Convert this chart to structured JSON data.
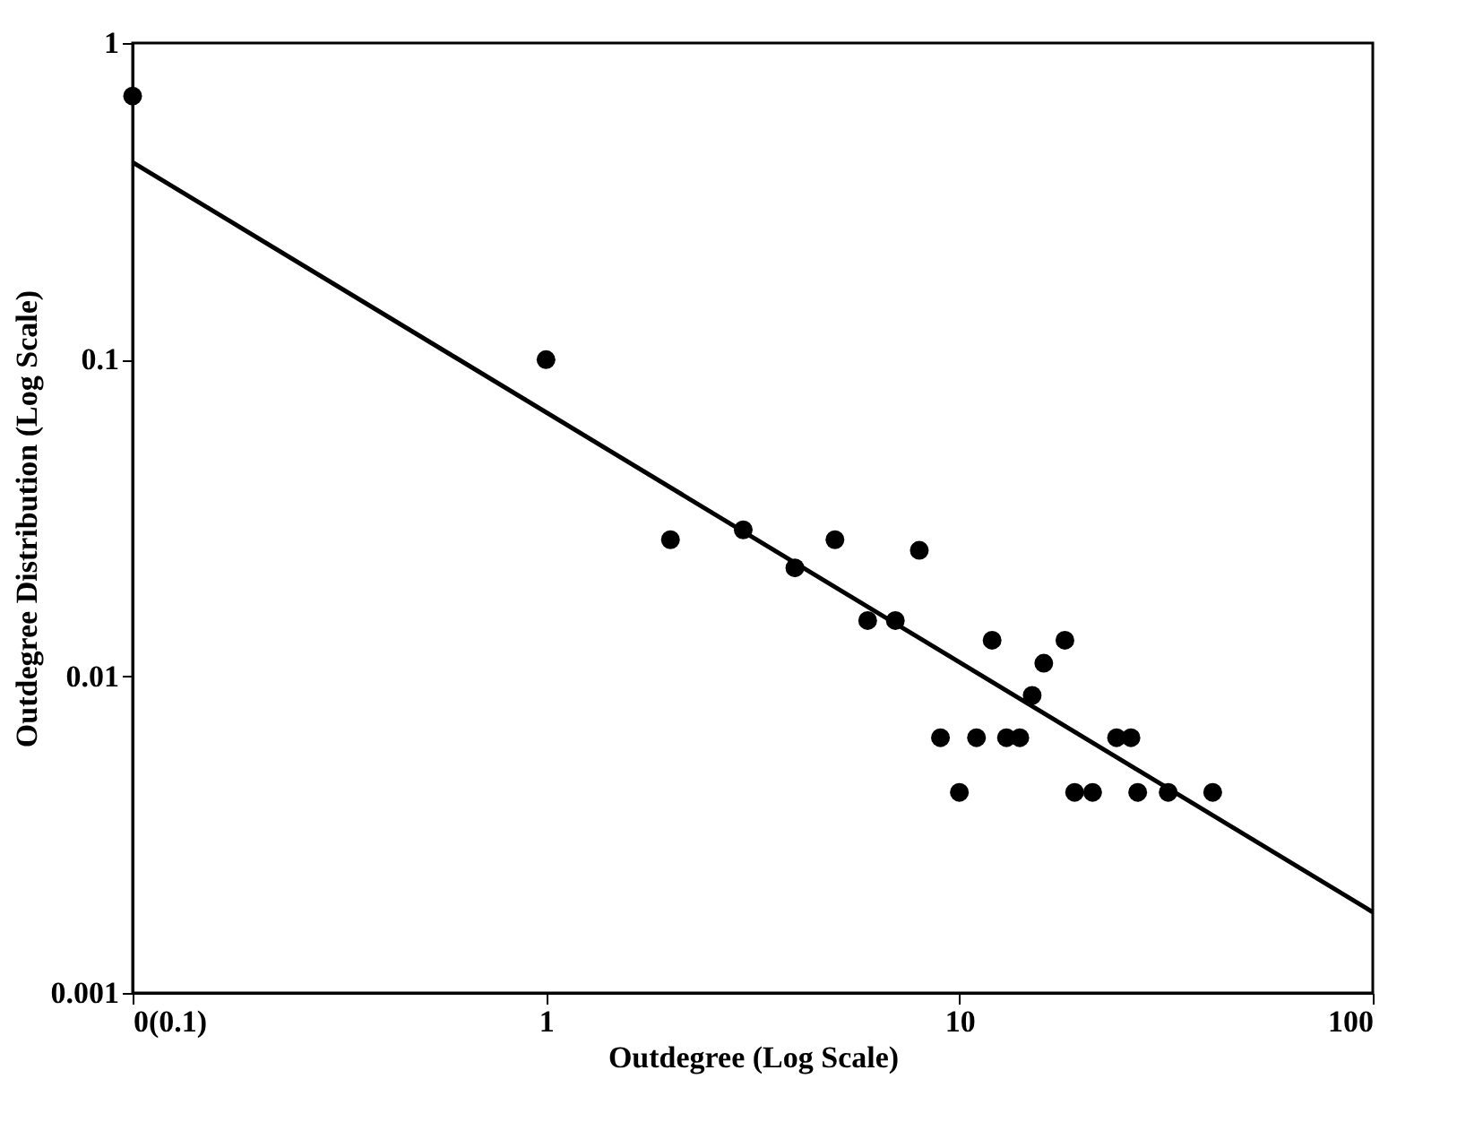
{
  "chart_data": {
    "type": "scatter",
    "xlabel": "Outdegree (Log Scale)",
    "ylabel": "Outdegree Distribution (Log Scale)",
    "log": "xy",
    "grid": false,
    "marker": "circle",
    "xlim": [
      0.1,
      100
    ],
    "xticks": [
      {
        "value": 0.1,
        "label": "0(0.1)"
      },
      1,
      10,
      100
    ],
    "ylim": [
      0.001,
      1
    ],
    "yticks": [
      0.001,
      0.01,
      0.1,
      1
    ],
    "series": [
      {
        "color": "#000000",
        "x": [
          0.1,
          1,
          2,
          3,
          4,
          5,
          6,
          7,
          8,
          9,
          10,
          11,
          12,
          13,
          14,
          15,
          16,
          18,
          19,
          21,
          24,
          26,
          27,
          32,
          41
        ],
        "values": [
          0.68,
          0.1,
          0.027,
          0.029,
          0.022,
          0.027,
          0.015,
          0.015,
          0.025,
          0.0064,
          0.0043,
          0.0064,
          0.013,
          0.0064,
          0.0064,
          0.0087,
          0.011,
          0.013,
          0.0043,
          0.0043,
          0.0064,
          0.0064,
          0.0043,
          0.0043,
          0.0043
        ]
      },
      {
        "type": "line",
        "color": "#000000",
        "line_style": "solid",
        "marker": "none",
        "x": [
          0.1,
          100
        ],
        "values": [
          0.42,
          0.0018
        ]
      }
    ]
  }
}
